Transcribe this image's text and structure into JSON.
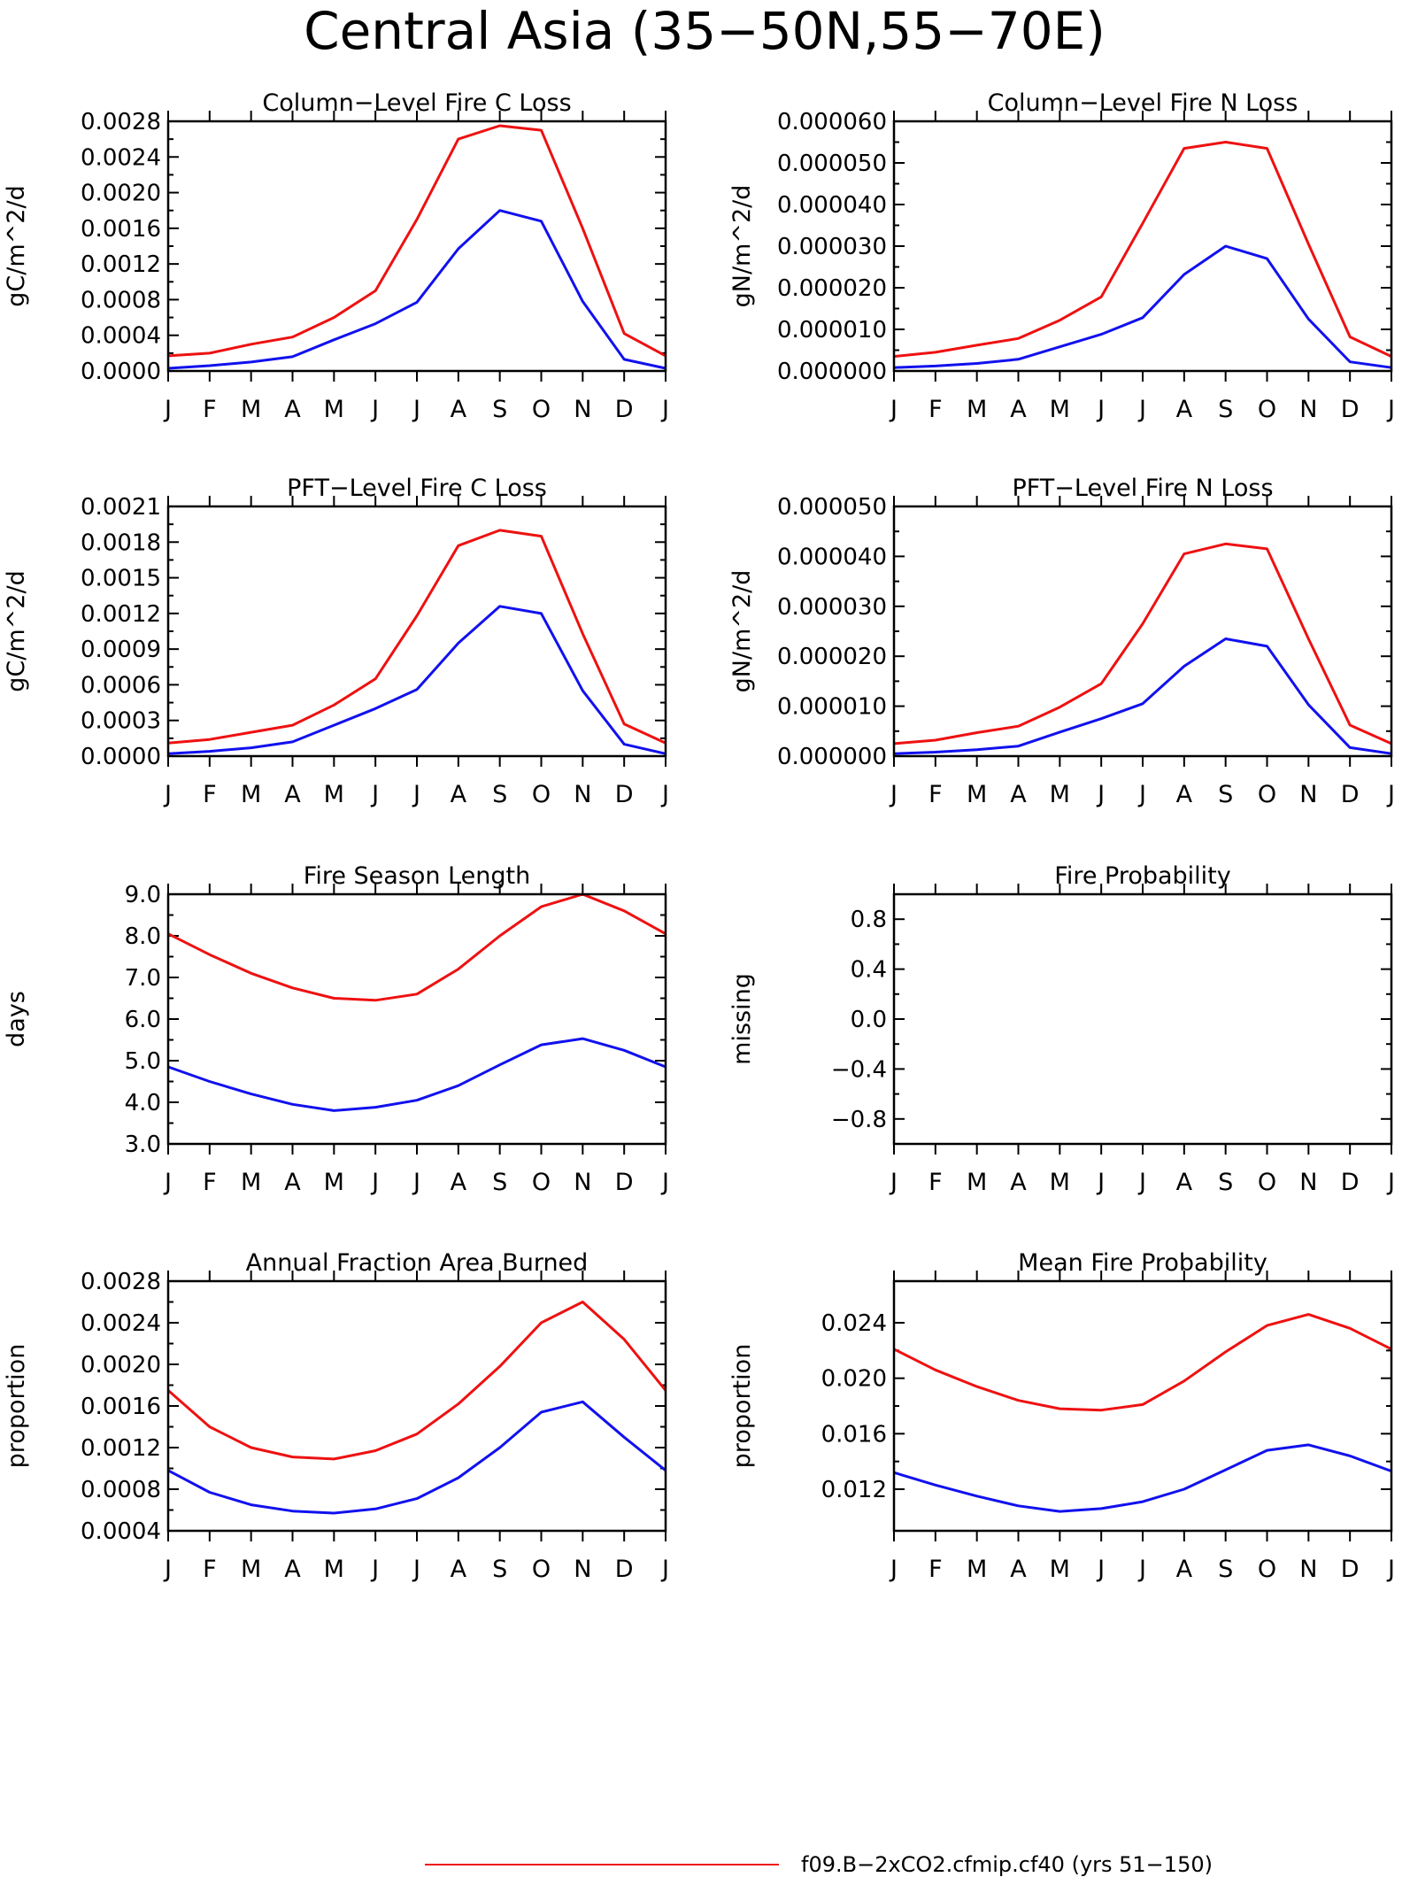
{
  "page": {
    "title": "Central Asia (35−50N,55−70E)"
  },
  "legend": {
    "entries": [
      {
        "label": "f09.B−2xCO2.cfmip.cf40 (yrs 51−150)",
        "color": "#ee1111"
      }
    ]
  },
  "colors": {
    "red": "#ee1111",
    "blue": "#1111ee",
    "axis": "#000000"
  },
  "chart_data": [
    {
      "type": "line",
      "title": "Column−Level Fire C Loss",
      "ylabel": "gC/m^2/d",
      "categories": [
        "J",
        "F",
        "M",
        "A",
        "M",
        "J",
        "J",
        "A",
        "S",
        "O",
        "N",
        "D",
        "J"
      ],
      "ylim": [
        0,
        0.0028
      ],
      "yticks": [
        "0.0000",
        "0.0004",
        "0.0008",
        "0.0012",
        "0.0016",
        "0.0020",
        "0.0024",
        "0.0028"
      ],
      "series": [
        {
          "color": "#ee1111",
          "values": [
            0.00017,
            0.0002,
            0.0003,
            0.00038,
            0.0006,
            0.0009,
            0.0017,
            0.0026,
            0.00275,
            0.0027,
            0.0016,
            0.00042,
            0.00017
          ]
        },
        {
          "color": "#1111ee",
          "values": [
            3e-05,
            6e-05,
            0.0001,
            0.00016,
            0.00035,
            0.00053,
            0.00077,
            0.00137,
            0.0018,
            0.00168,
            0.00078,
            0.00013,
            3e-05
          ]
        }
      ]
    },
    {
      "type": "line",
      "title": "Column−Level Fire N Loss",
      "ylabel": "gN/m^2/d",
      "categories": [
        "J",
        "F",
        "M",
        "A",
        "M",
        "J",
        "J",
        "A",
        "S",
        "O",
        "N",
        "D",
        "J"
      ],
      "ylim": [
        0,
        6e-05
      ],
      "yticks": [
        "0.000000",
        "0.000010",
        "0.000020",
        "0.000030",
        "0.000040",
        "0.000050",
        "0.000060"
      ],
      "series": [
        {
          "color": "#ee1111",
          "values": [
            3.5e-06,
            4.5e-06,
            6.2e-06,
            7.8e-06,
            1.22e-05,
            1.78e-05,
            3.55e-05,
            5.35e-05,
            5.5e-05,
            5.35e-05,
            3.05e-05,
            8.2e-06,
            3.5e-06
          ]
        },
        {
          "color": "#1111ee",
          "values": [
            8e-07,
            1.2e-06,
            1.8e-06,
            2.8e-06,
            5.8e-06,
            8.8e-06,
            1.28e-05,
            2.32e-05,
            3e-05,
            2.7e-05,
            1.25e-05,
            2.2e-06,
            8e-07
          ]
        }
      ]
    },
    {
      "type": "line",
      "title": "PFT−Level Fire C Loss",
      "ylabel": "gC/m^2/d",
      "categories": [
        "J",
        "F",
        "M",
        "A",
        "M",
        "J",
        "J",
        "A",
        "S",
        "O",
        "N",
        "D",
        "J"
      ],
      "ylim": [
        0,
        0.0021
      ],
      "yticks": [
        "0.0000",
        "0.0003",
        "0.0006",
        "0.0009",
        "0.0012",
        "0.0015",
        "0.0018",
        "0.0021"
      ],
      "series": [
        {
          "color": "#ee1111",
          "values": [
            0.00011,
            0.00014,
            0.0002,
            0.00026,
            0.00043,
            0.00065,
            0.00118,
            0.00177,
            0.0019,
            0.00185,
            0.00103,
            0.00027,
            0.00011
          ]
        },
        {
          "color": "#1111ee",
          "values": [
            2e-05,
            4e-05,
            7e-05,
            0.00012,
            0.00026,
            0.0004,
            0.00056,
            0.00095,
            0.00126,
            0.0012,
            0.00055,
            0.0001,
            2e-05
          ]
        }
      ]
    },
    {
      "type": "line",
      "title": "PFT−Level Fire N Loss",
      "ylabel": "gN/m^2/d",
      "categories": [
        "J",
        "F",
        "M",
        "A",
        "M",
        "J",
        "J",
        "A",
        "S",
        "O",
        "N",
        "D",
        "J"
      ],
      "ylim": [
        0,
        5e-05
      ],
      "yticks": [
        "0.000000",
        "0.000010",
        "0.000020",
        "0.000030",
        "0.000040",
        "0.000050"
      ],
      "series": [
        {
          "color": "#ee1111",
          "values": [
            2.5e-06,
            3.2e-06,
            4.7e-06,
            6e-06,
            9.8e-06,
            1.45e-05,
            2.65e-05,
            4.05e-05,
            4.25e-05,
            4.15e-05,
            2.35e-05,
            6.2e-06,
            2.5e-06
          ]
        },
        {
          "color": "#1111ee",
          "values": [
            5e-07,
            8e-07,
            1.3e-06,
            2e-06,
            4.8e-06,
            7.5e-06,
            1.05e-05,
            1.8e-05,
            2.35e-05,
            2.2e-05,
            1.03e-05,
            1.7e-06,
            5e-07
          ]
        }
      ]
    },
    {
      "type": "line",
      "title": "Fire Season Length",
      "ylabel": "days",
      "categories": [
        "J",
        "F",
        "M",
        "A",
        "M",
        "J",
        "J",
        "A",
        "S",
        "O",
        "N",
        "D",
        "J"
      ],
      "ylim": [
        3,
        9
      ],
      "yticks": [
        "3.0",
        "4.0",
        "5.0",
        "6.0",
        "7.0",
        "8.0",
        "9.0"
      ],
      "series": [
        {
          "color": "#ee1111",
          "values": [
            8.05,
            7.55,
            7.1,
            6.75,
            6.5,
            6.45,
            6.6,
            7.2,
            8.0,
            8.7,
            9.0,
            8.6,
            8.05
          ]
        },
        {
          "color": "#1111ee",
          "values": [
            4.85,
            4.5,
            4.2,
            3.95,
            3.8,
            3.88,
            4.05,
            4.4,
            4.9,
            5.38,
            5.53,
            5.25,
            4.85
          ]
        }
      ]
    },
    {
      "type": "line",
      "title": "Fire Probability",
      "ylabel": "missing",
      "categories": [
        "J",
        "F",
        "M",
        "A",
        "M",
        "J",
        "J",
        "A",
        "S",
        "O",
        "N",
        "D",
        "J"
      ],
      "ylim": [
        -1,
        1
      ],
      "yticks": [
        "−0.8",
        "−0.4",
        "0.0",
        "0.4",
        "0.8"
      ],
      "series": []
    },
    {
      "type": "line",
      "title": "Annual Fraction Area Burned",
      "ylabel": "proportion",
      "categories": [
        "J",
        "F",
        "M",
        "A",
        "M",
        "J",
        "J",
        "A",
        "S",
        "O",
        "N",
        "D",
        "J"
      ],
      "ylim": [
        0.0004,
        0.0028
      ],
      "yticks": [
        "0.0004",
        "0.0008",
        "0.0012",
        "0.0016",
        "0.0020",
        "0.0024",
        "0.0028"
      ],
      "series": [
        {
          "color": "#ee1111",
          "values": [
            0.00175,
            0.0014,
            0.0012,
            0.00111,
            0.00109,
            0.00117,
            0.00133,
            0.00162,
            0.00198,
            0.0024,
            0.0026,
            0.00224,
            0.00175
          ]
        },
        {
          "color": "#1111ee",
          "values": [
            0.00098,
            0.00077,
            0.00065,
            0.00059,
            0.00057,
            0.00061,
            0.00071,
            0.00091,
            0.0012,
            0.00154,
            0.00164,
            0.0013,
            0.00098
          ]
        }
      ]
    },
    {
      "type": "line",
      "title": "Mean Fire Probability",
      "ylabel": "proportion",
      "categories": [
        "J",
        "F",
        "M",
        "A",
        "M",
        "J",
        "J",
        "A",
        "S",
        "O",
        "N",
        "D",
        "J"
      ],
      "ylim": [
        0.009,
        0.027
      ],
      "yticks": [
        "0.012",
        "0.016",
        "0.020",
        "0.024"
      ],
      "series": [
        {
          "color": "#ee1111",
          "values": [
            0.0221,
            0.0206,
            0.0194,
            0.0184,
            0.0178,
            0.0177,
            0.0181,
            0.0198,
            0.0219,
            0.0238,
            0.0246,
            0.0236,
            0.0221
          ]
        },
        {
          "color": "#1111ee",
          "values": [
            0.0132,
            0.0123,
            0.0115,
            0.0108,
            0.0104,
            0.0106,
            0.0111,
            0.012,
            0.0134,
            0.0148,
            0.0152,
            0.0144,
            0.0133
          ]
        }
      ]
    }
  ]
}
